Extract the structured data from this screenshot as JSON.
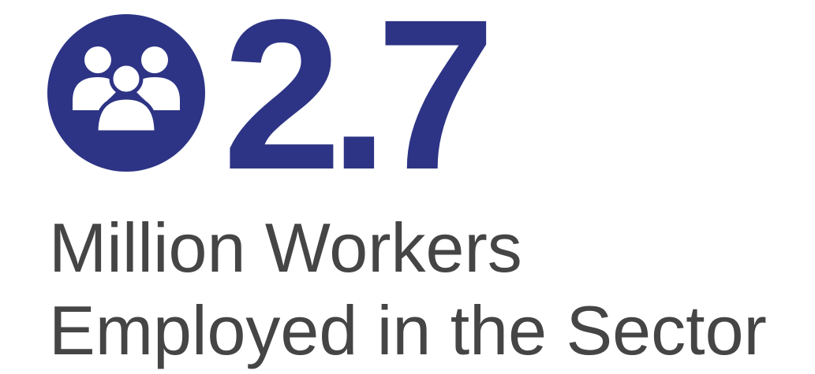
{
  "stat": {
    "value": "2.7",
    "caption_lines": [
      "Million Workers",
      "Employed in the Sector"
    ]
  }
}
